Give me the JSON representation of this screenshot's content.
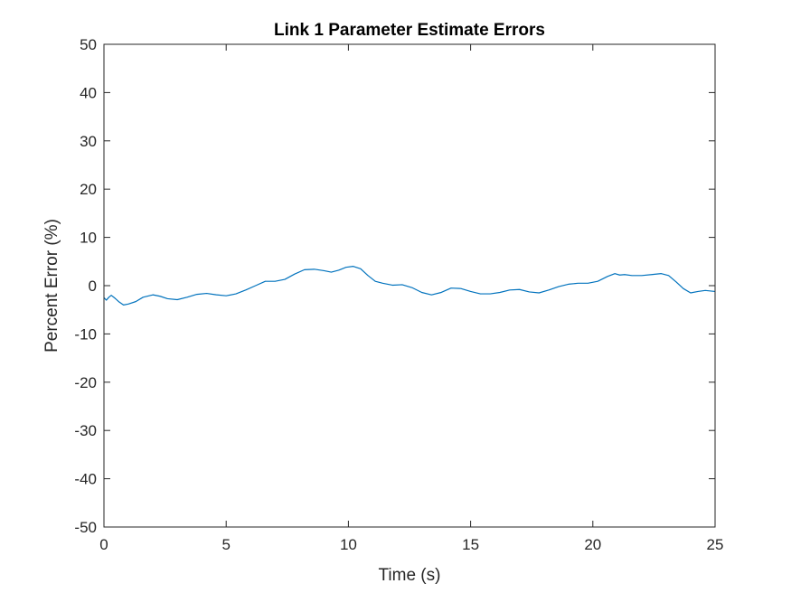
{
  "chart_data": {
    "type": "line",
    "title": "Link 1 Parameter Estimate Errors",
    "xlabel": "Time (s)",
    "ylabel": "Percent Error (%)",
    "xlim": [
      0,
      25
    ],
    "ylim": [
      -50,
      50
    ],
    "xticks": [
      "0",
      "5",
      "10",
      "15",
      "20",
      "25"
    ],
    "yticks": [
      "50",
      "40",
      "30",
      "20",
      "10",
      "0",
      "-10",
      "-20",
      "-30",
      "-40",
      "-50"
    ],
    "grid": false,
    "legend": "none",
    "series": [
      {
        "color": "#0072BD",
        "x": [
          0,
          0.1,
          0.2,
          0.3,
          0.45,
          0.6,
          0.8,
          1.0,
          1.3,
          1.6,
          2.0,
          2.3,
          2.6,
          3.0,
          3.4,
          3.8,
          4.2,
          4.6,
          5.0,
          5.4,
          5.8,
          6.2,
          6.6,
          7.0,
          7.4,
          7.8,
          8.2,
          8.6,
          9.0,
          9.3,
          9.6,
          9.9,
          10.2,
          10.5,
          10.8,
          11.1,
          11.4,
          11.8,
          12.2,
          12.6,
          13.0,
          13.4,
          13.8,
          14.2,
          14.6,
          15.0,
          15.4,
          15.8,
          16.2,
          16.6,
          17.0,
          17.4,
          17.8,
          18.2,
          18.6,
          19.0,
          19.4,
          19.8,
          20.2,
          20.6,
          20.9,
          21.1,
          21.3,
          21.6,
          22.0,
          22.4,
          22.8,
          23.1,
          23.4,
          23.7,
          24.0,
          24.3,
          24.6,
          25.0
        ],
        "y": [
          -2.5,
          -3.0,
          -2.4,
          -2.0,
          -2.6,
          -3.3,
          -4.0,
          -3.8,
          -3.3,
          -2.4,
          -1.9,
          -2.2,
          -2.7,
          -2.9,
          -2.4,
          -1.8,
          -1.6,
          -1.9,
          -2.1,
          -1.7,
          -0.9,
          0.0,
          0.9,
          0.9,
          1.3,
          2.4,
          3.3,
          3.4,
          3.1,
          2.8,
          3.2,
          3.8,
          4.0,
          3.5,
          2.1,
          0.9,
          0.5,
          0.1,
          0.2,
          -0.4,
          -1.4,
          -1.9,
          -1.4,
          -0.5,
          -0.6,
          -1.2,
          -1.7,
          -1.7,
          -1.4,
          -0.9,
          -0.8,
          -1.3,
          -1.5,
          -0.9,
          -0.2,
          0.3,
          0.5,
          0.5,
          0.9,
          1.9,
          2.5,
          2.2,
          2.3,
          2.1,
          2.1,
          2.3,
          2.5,
          2.1,
          0.8,
          -0.6,
          -1.5,
          -1.2,
          -1.0,
          -1.2
        ]
      }
    ]
  }
}
